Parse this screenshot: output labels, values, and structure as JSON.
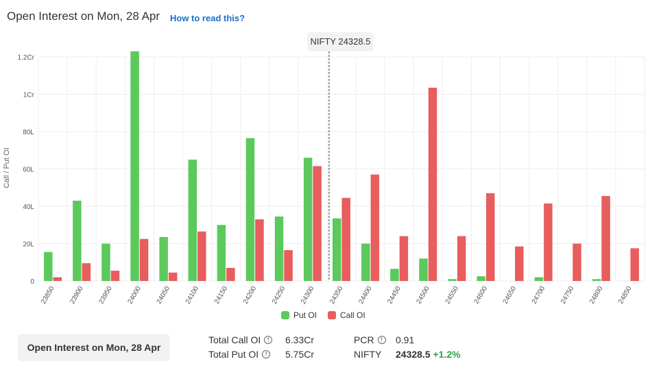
{
  "header": {
    "title": "Open Interest on Mon, 28 Apr",
    "how_to_read": "How to read this?"
  },
  "spot_marker": {
    "label": "NIFTY 24328.5",
    "value": 24328.5
  },
  "colors": {
    "put": "#5cc95c",
    "call": "#e85d5d",
    "grid": "#eeeeee"
  },
  "chart_data": {
    "type": "bar",
    "ylabel": "Call / Put OI",
    "yticks": [
      "0",
      "20L",
      "40L",
      "60L",
      "80L",
      "1Cr",
      "1.2Cr"
    ],
    "ylim": [
      0,
      120
    ],
    "grid": true,
    "legend_position": "bottom",
    "categories": [
      "23850",
      "23900",
      "23950",
      "24000",
      "24050",
      "24100",
      "24150",
      "24200",
      "24250",
      "24300",
      "24350",
      "24400",
      "24450",
      "24500",
      "24550",
      "24600",
      "24650",
      "24700",
      "24750",
      "24800",
      "24850"
    ],
    "series": [
      {
        "name": "Put OI",
        "color": "#5cc95c",
        "values": [
          15.5,
          43,
          20,
          123,
          23.5,
          65,
          30,
          76.5,
          34.5,
          66,
          33.5,
          20,
          6.5,
          12,
          1,
          2.5,
          0,
          2,
          0,
          1,
          0
        ]
      },
      {
        "name": "Call OI",
        "color": "#e85d5d",
        "values": [
          2,
          9.5,
          5.5,
          22.5,
          4.5,
          26.5,
          7,
          33,
          16.5,
          61.5,
          44.5,
          57,
          24,
          103.5,
          24,
          47,
          18.5,
          41.5,
          20,
          45.5,
          17.5
        ]
      }
    ]
  },
  "legend": {
    "put_label": "Put OI",
    "call_label": "Call OI"
  },
  "footer": {
    "button_label": "Open Interest on Mon, 28 Apr",
    "total_call_label": "Total Call OI",
    "total_call_value": "6.33Cr",
    "total_put_label": "Total Put OI",
    "total_put_value": "5.75Cr",
    "pcr_label": "PCR",
    "pcr_value": "0.91",
    "nifty_label": "NIFTY",
    "nifty_value": "24328.5",
    "nifty_change": "+1.2%"
  }
}
